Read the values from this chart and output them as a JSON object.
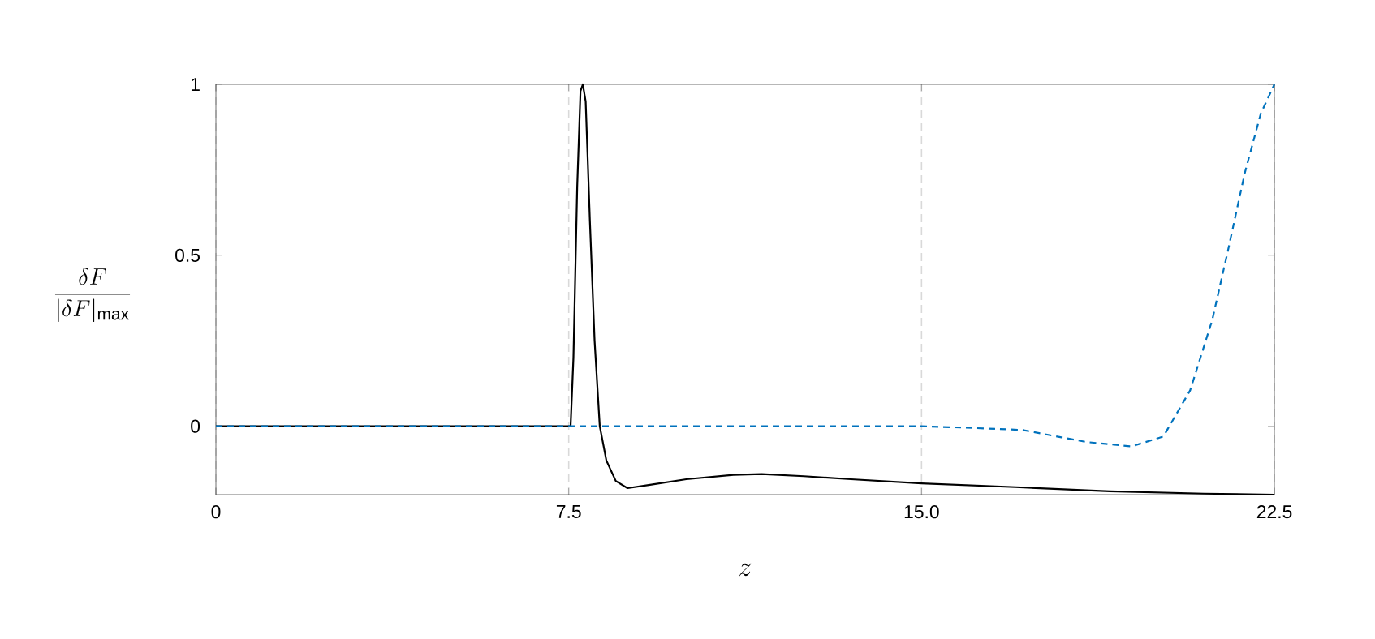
{
  "chart_data": {
    "type": "line",
    "xlabel": "z",
    "ylabel": "\\frac{\\delta F}{|\\delta F|_{\\max}}",
    "xlim": [
      0,
      22.5
    ],
    "ylim": [
      -0.2,
      1
    ],
    "xticks": [
      0,
      7.5,
      {
        "value": 15,
        "label": "15.0"
      },
      22.5
    ],
    "yticks": [
      0,
      0.5,
      1
    ],
    "grid": "x",
    "series": [
      {
        "color": "#000000",
        "line_style": "solid",
        "x": [
          0,
          7.5,
          7.54,
          7.6,
          7.68,
          7.75,
          7.8,
          7.86,
          7.95,
          8.05,
          8.16,
          8.3,
          8.5,
          8.75,
          9.2,
          10,
          11,
          11.6,
          12.5,
          13.5,
          15,
          17,
          19,
          21,
          22.5
        ],
        "values": [
          0,
          0,
          0,
          0.2,
          0.7,
          0.98,
          1,
          0.95,
          0.6,
          0.25,
          0,
          -0.1,
          -0.16,
          -0.181,
          -0.172,
          -0.155,
          -0.142,
          -0.14,
          -0.146,
          -0.155,
          -0.167,
          -0.178,
          -0.19,
          -0.197,
          -0.2
        ]
      },
      {
        "color": "#0072bd",
        "line_style": "dashed",
        "x": [
          0,
          15,
          16.1,
          17.15,
          18.5,
          19.46,
          20.14,
          20.71,
          21.18,
          21.52,
          21.87,
          22.21,
          22.5
        ],
        "values": [
          0,
          0,
          -0.005,
          -0.011,
          -0.046,
          -0.059,
          -0.03,
          0.105,
          0.311,
          0.518,
          0.74,
          0.914,
          1
        ]
      }
    ]
  }
}
